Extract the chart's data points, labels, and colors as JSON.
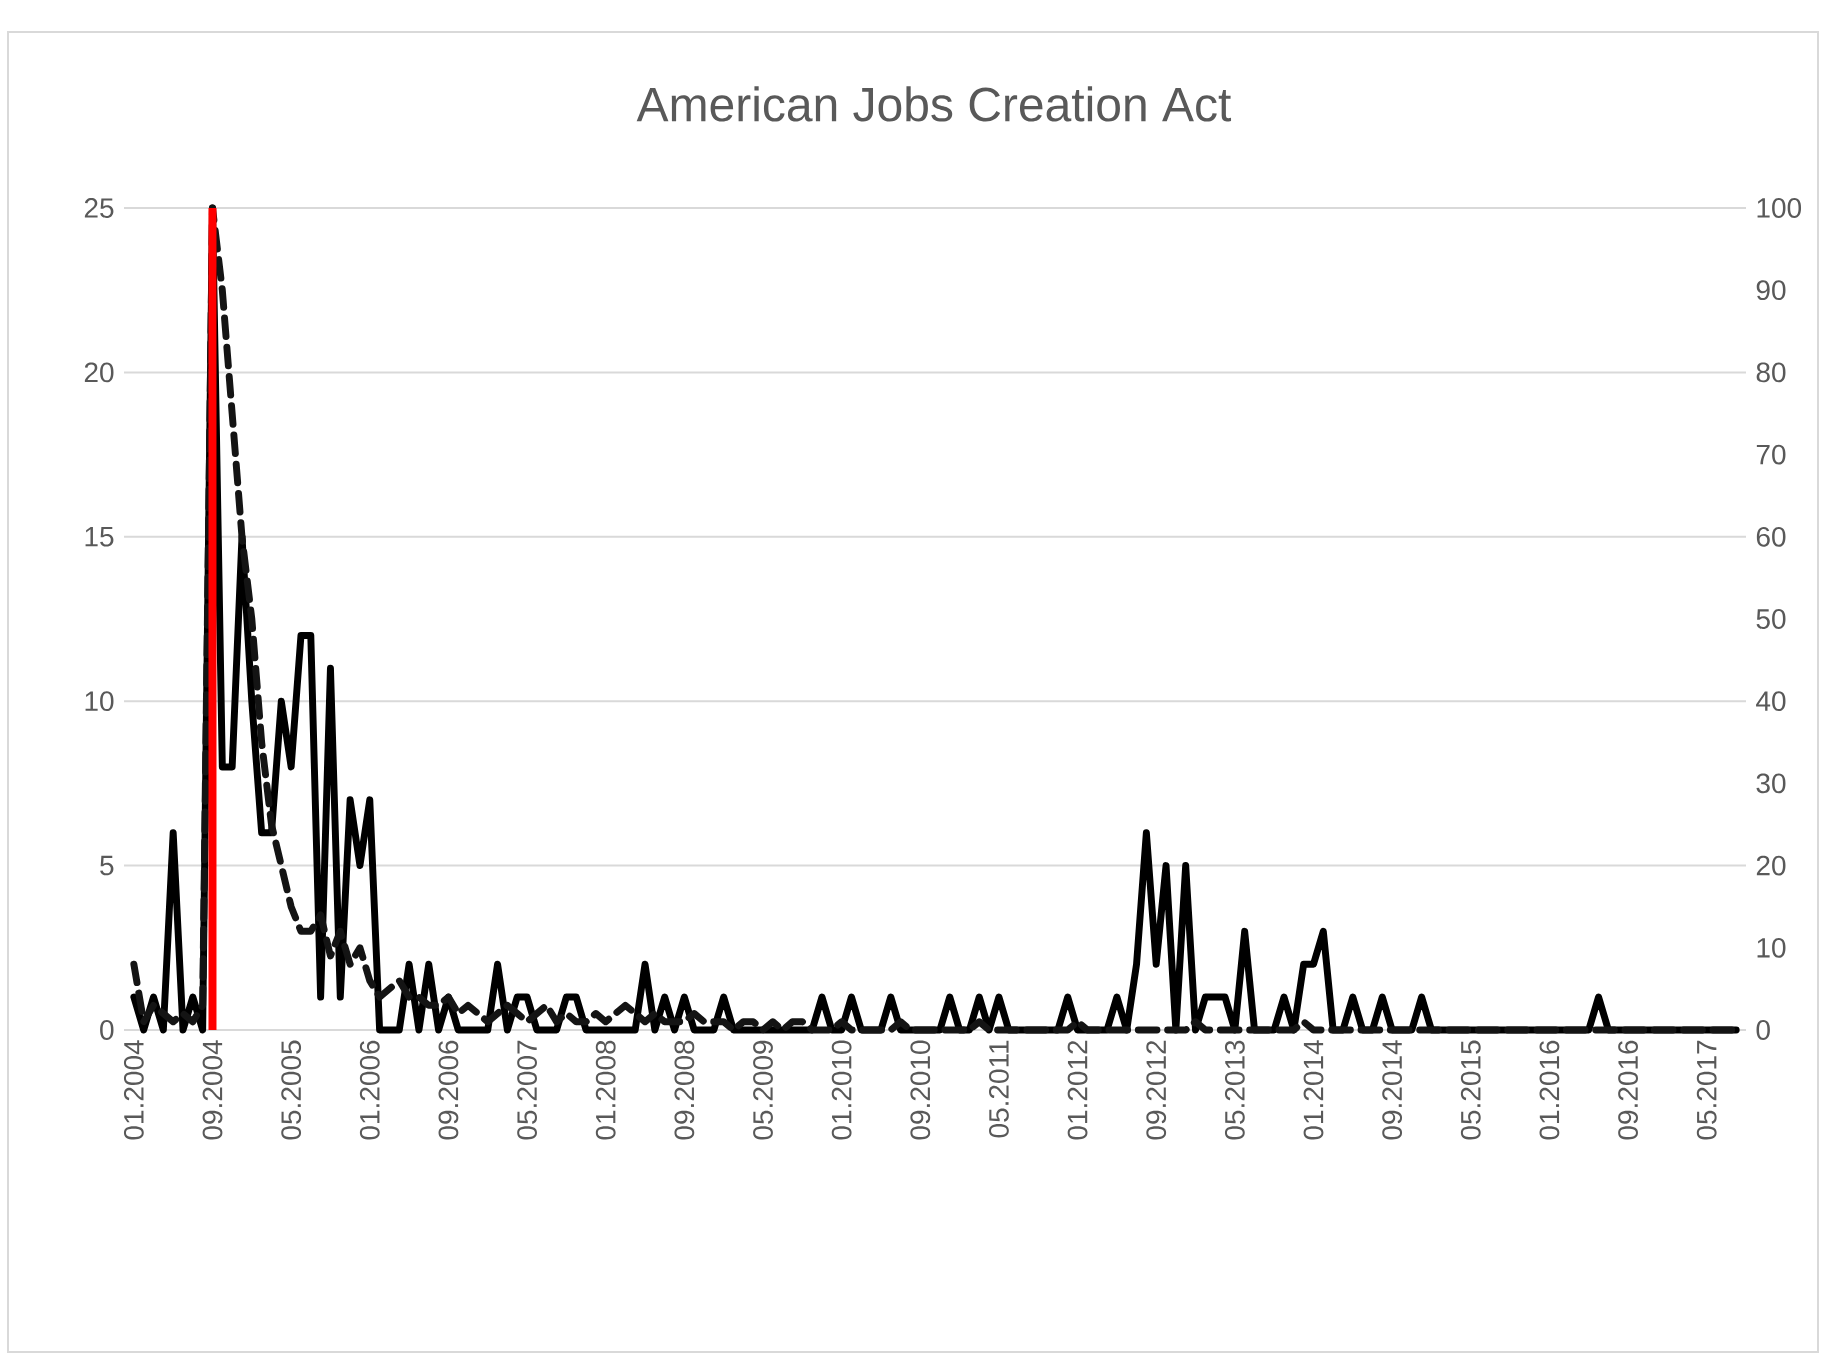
{
  "chart_data": {
    "type": "line",
    "title": "American Jobs Creation Act",
    "categories": [
      "01.2004",
      null,
      null,
      null,
      null,
      null,
      null,
      null,
      "09.2004",
      null,
      null,
      null,
      null,
      null,
      null,
      null,
      "05.2005",
      null,
      null,
      null,
      null,
      null,
      null,
      null,
      "01.2006",
      null,
      null,
      null,
      null,
      null,
      null,
      null,
      "09.2006",
      null,
      null,
      null,
      null,
      null,
      null,
      null,
      "05.2007",
      null,
      null,
      null,
      null,
      null,
      null,
      null,
      "01.2008",
      null,
      null,
      null,
      null,
      null,
      null,
      null,
      "09.2008",
      null,
      null,
      null,
      null,
      null,
      null,
      null,
      "05.2009",
      null,
      null,
      null,
      null,
      null,
      null,
      null,
      "01.2010",
      null,
      null,
      null,
      null,
      null,
      null,
      null,
      "09.2010",
      null,
      null,
      null,
      null,
      null,
      null,
      null,
      "05.2011",
      null,
      null,
      null,
      null,
      null,
      null,
      null,
      "01.2012",
      null,
      null,
      null,
      null,
      null,
      null,
      null,
      "09.2012",
      null,
      null,
      null,
      null,
      null,
      null,
      null,
      "05.2013",
      null,
      null,
      null,
      null,
      null,
      null,
      null,
      "01.2014",
      null,
      null,
      null,
      null,
      null,
      null,
      null,
      "09.2014",
      null,
      null,
      null,
      null,
      null,
      null,
      null,
      "05.2015",
      null,
      null,
      null,
      null,
      null,
      null,
      null,
      "01.2016",
      null,
      null,
      null,
      null,
      null,
      null,
      null,
      "09.2016",
      null,
      null,
      null,
      null,
      null,
      null,
      null,
      "05.2017",
      null,
      null,
      null
    ],
    "series": [
      {
        "color": "#000000",
        "line_style": "solid",
        "values": [
          1,
          0,
          1,
          0,
          6,
          0,
          1,
          0,
          25,
          8,
          8,
          15,
          10,
          6,
          6,
          10,
          8,
          12,
          12,
          1,
          11,
          1,
          7,
          5,
          7,
          0,
          0,
          0,
          2,
          0,
          2,
          0,
          1,
          0,
          0,
          0,
          0,
          2,
          0,
          1,
          1,
          0,
          0,
          0,
          1,
          1,
          0,
          0,
          0,
          0,
          0,
          0,
          2,
          0,
          1,
          0,
          1,
          0,
          0,
          0,
          1,
          0,
          0,
          0,
          0,
          0,
          0,
          0,
          0,
          0,
          1,
          0,
          0,
          1,
          0,
          0,
          0,
          1,
          0,
          0,
          0,
          0,
          0,
          1,
          0,
          0,
          1,
          0,
          1,
          0,
          0,
          0,
          0,
          0,
          0,
          1,
          0,
          0,
          0,
          0,
          1,
          0,
          2,
          6,
          2,
          5,
          0,
          5,
          0,
          1,
          1,
          1,
          0,
          3,
          0,
          0,
          0,
          1,
          0,
          2,
          2,
          3,
          0,
          0,
          1,
          0,
          0,
          1,
          0,
          0,
          0,
          1,
          0,
          0,
          0,
          0,
          0,
          0,
          0,
          0,
          0,
          0,
          0,
          0,
          0,
          0,
          0,
          0,
          0,
          1,
          0,
          0,
          0,
          0,
          0,
          0,
          0,
          0,
          0,
          0,
          0,
          0,
          0,
          0
        ]
      },
      {
        "color": "#141414",
        "line_style": "dashed",
        "axis": "y2",
        "values": [
          8,
          1,
          3,
          2,
          1,
          2,
          1,
          3,
          100,
          90,
          75,
          60,
          50,
          35,
          25,
          20,
          15,
          12,
          12,
          14,
          9,
          12,
          8,
          10,
          6,
          4,
          5,
          6,
          4,
          4,
          3,
          3,
          4,
          2,
          3,
          2,
          1,
          2,
          3,
          2,
          1,
          2,
          3,
          1,
          2,
          1,
          1,
          2,
          1,
          2,
          3,
          2,
          1,
          2,
          1,
          1,
          1,
          2,
          1,
          1,
          1,
          0,
          1,
          1,
          0,
          1,
          0,
          1,
          1,
          0,
          0,
          0,
          1,
          0,
          0,
          0,
          0,
          0,
          1,
          0,
          0,
          0,
          0,
          0,
          0,
          0,
          1,
          0,
          0,
          0,
          0,
          0,
          0,
          0,
          0,
          0,
          1,
          0,
          0,
          0,
          0,
          0,
          0,
          0,
          0,
          0,
          0,
          0,
          1,
          0,
          0,
          0,
          0,
          0,
          0,
          0,
          0,
          0,
          0,
          1,
          0,
          0,
          0,
          0,
          0,
          0,
          0,
          0,
          0,
          0,
          0,
          0,
          0,
          0,
          0,
          0,
          0,
          0,
          0,
          0,
          0,
          0,
          0,
          0,
          0,
          0,
          0,
          0,
          0,
          0,
          0,
          0,
          0,
          0,
          0,
          0,
          0,
          0,
          0,
          0,
          0,
          0,
          0,
          0
        ]
      }
    ],
    "ylim": [
      0,
      25
    ],
    "yticks": [
      0,
      5,
      10,
      15,
      20,
      25
    ],
    "y2lim": [
      0,
      100
    ],
    "y2ticks": [
      0,
      10,
      20,
      30,
      40,
      50,
      60,
      70,
      80,
      90,
      100
    ],
    "grid": "y",
    "ref_lines": [
      {
        "axis": "x",
        "value": "09.2004",
        "color": "#ff0000"
      }
    ]
  }
}
